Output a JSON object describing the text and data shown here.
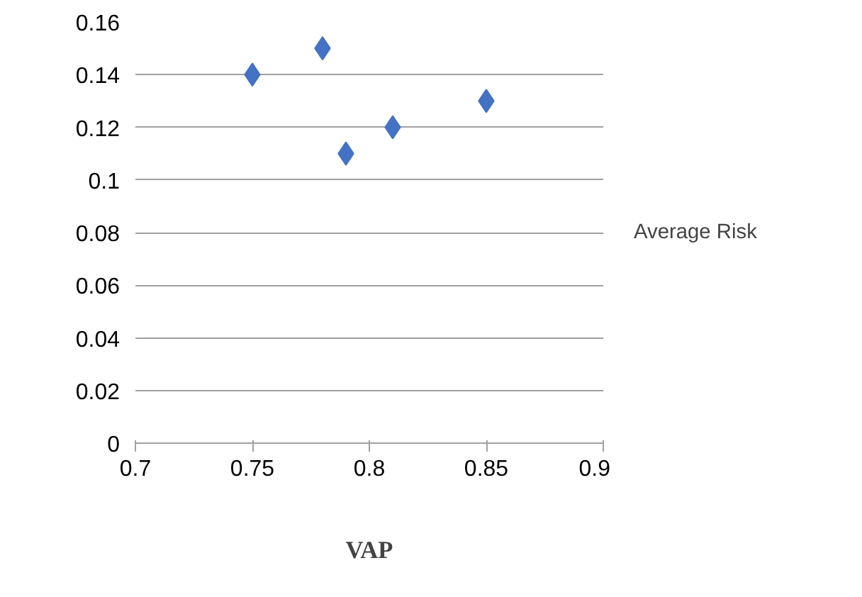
{
  "chart_data": {
    "type": "scatter",
    "xlabel": "VAP",
    "x": [
      0.75,
      0.78,
      0.79,
      0.81,
      0.85
    ],
    "series": [
      {
        "name": "Average Risk",
        "color": "#4472c4",
        "values": [
          0.14,
          0.15,
          0.11,
          0.12,
          0.13
        ]
      }
    ],
    "xlim": [
      0.7,
      0.9
    ],
    "xticks": [
      0.7,
      0.75,
      0.8,
      0.85,
      0.9
    ],
    "ylim": [
      0,
      0.16
    ],
    "yticks": [
      0,
      0.02,
      0.04,
      0.06,
      0.08,
      0.1,
      0.12,
      0.14,
      0.16
    ],
    "grid": "y",
    "legend": "right",
    "marker": "diamond"
  }
}
